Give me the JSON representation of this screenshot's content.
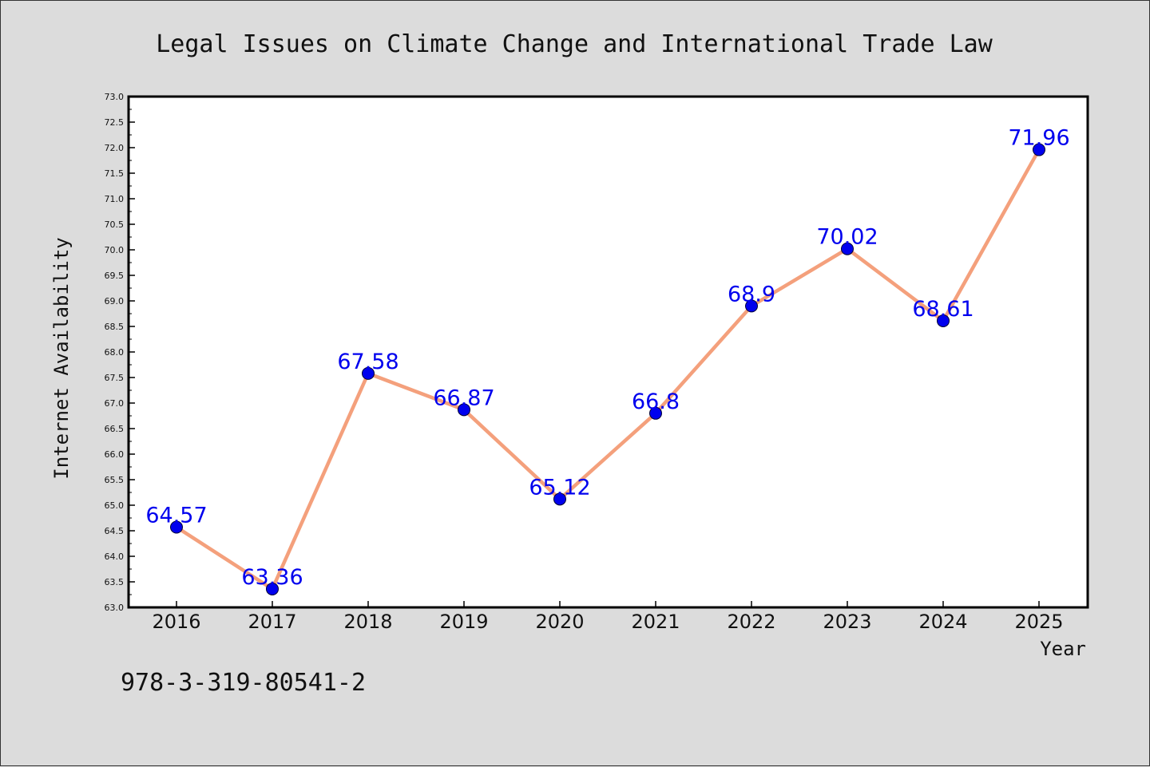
{
  "chart_data": {
    "type": "line",
    "title": "Legal Issues on Climate Change and International Trade Law",
    "xlabel": "Year",
    "ylabel": "Internet Availability",
    "categories": [
      "2016",
      "2017",
      "2018",
      "2019",
      "2020",
      "2021",
      "2022",
      "2023",
      "2024",
      "2025"
    ],
    "values": [
      64.57,
      63.36,
      67.58,
      66.87,
      65.12,
      66.8,
      68.9,
      70.02,
      68.61,
      71.96
    ],
    "data_labels": [
      "64.57",
      "63.36",
      "67.58",
      "66.87",
      "65.12",
      "66.8",
      "68.9",
      "70.02",
      "68.61",
      "71.96"
    ],
    "ylim": [
      63.0,
      73.0
    ],
    "yticks": [
      "63.0",
      "63.5",
      "64.0",
      "64.5",
      "65.0",
      "65.5",
      "66.0",
      "66.5",
      "67.0",
      "67.5",
      "68.0",
      "68.5",
      "69.0",
      "69.5",
      "70.0",
      "70.5",
      "71.0",
      "71.5",
      "72.0",
      "72.5",
      "73.0"
    ],
    "line_color": "#f4a07c",
    "marker_color": "#0000ee",
    "label_color": "#0000ee",
    "background": "#dcdcdc",
    "grid": false,
    "legend": "none"
  },
  "footer": {
    "isbn": "978-3-319-80541-2"
  }
}
